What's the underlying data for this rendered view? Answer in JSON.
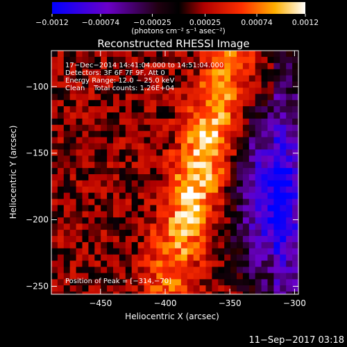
{
  "chart_data": {
    "type": "heatmap",
    "title": "Reconstructed RHESSI Image",
    "xlabel": "Heliocentric X (arcsec)",
    "ylabel": "Heliocentric Y (arcsec)",
    "xlim": [
      -488,
      -297
    ],
    "ylim": [
      -256,
      -73
    ],
    "xticks": [
      -450,
      -400,
      -350,
      -300
    ],
    "xtick_labels": [
      "−450",
      "−400",
      "−350",
      "−300"
    ],
    "yticks": [
      -250,
      -200,
      -150,
      -100
    ],
    "ytick_labels": [
      "−250",
      "−200",
      "−150",
      "−100"
    ],
    "colorbar": {
      "min": -0.0012,
      "max": 0.0012,
      "ticks": [
        -0.0012,
        -0.00074,
        -0.00025,
        0.00025,
        0.00074,
        0.0012
      ],
      "tick_labels": [
        "−0.0012",
        "−0.00074",
        "−0.00025",
        "0.00025",
        "0.00074",
        "0.0012"
      ],
      "unit_label": "(photons cm⁻² s⁻¹ asec⁻²)"
    },
    "annotations": {
      "time": "17−Dec−2014 14:41:04.000 to 14:51:04.000",
      "detectors": "Detectors: 3F 6F 7F 9F, Att 0",
      "energy": "Energy Range: 12.0 − 25.0 keV",
      "clean": "Clean    Total counts: 1.26E+04",
      "peak": "Position of Peak = [−314,−70]"
    },
    "source_center_x": -372,
    "source_center_y": -160,
    "peak_value": 0.0012,
    "min_value": -0.0012,
    "footer_timestamp": "11−Sep−2017 03:18",
    "colors": {
      "background": "#000000",
      "text": "#ffffff"
    }
  }
}
